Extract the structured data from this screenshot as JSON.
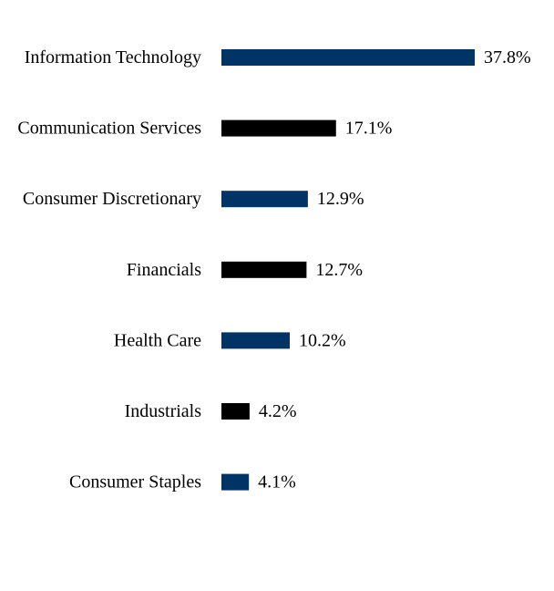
{
  "chart_data": {
    "type": "bar",
    "orientation": "horizontal",
    "categories": [
      "Information Technology",
      "Communication Services",
      "Consumer Discretionary",
      "Financials",
      "Health Care",
      "Industrials",
      "Consumer Staples"
    ],
    "values": [
      37.8,
      17.1,
      12.9,
      12.7,
      10.2,
      4.2,
      4.1
    ],
    "value_labels": [
      "37.8%",
      "17.1%",
      "12.9%",
      "12.7%",
      "10.2%",
      "4.2%",
      "4.1%"
    ],
    "bar_colors": [
      "#003366",
      "#000000",
      "#003366",
      "#000000",
      "#003366",
      "#000000",
      "#003366"
    ],
    "xlim": [
      0,
      37.8
    ],
    "grid": false,
    "legend": "none"
  }
}
